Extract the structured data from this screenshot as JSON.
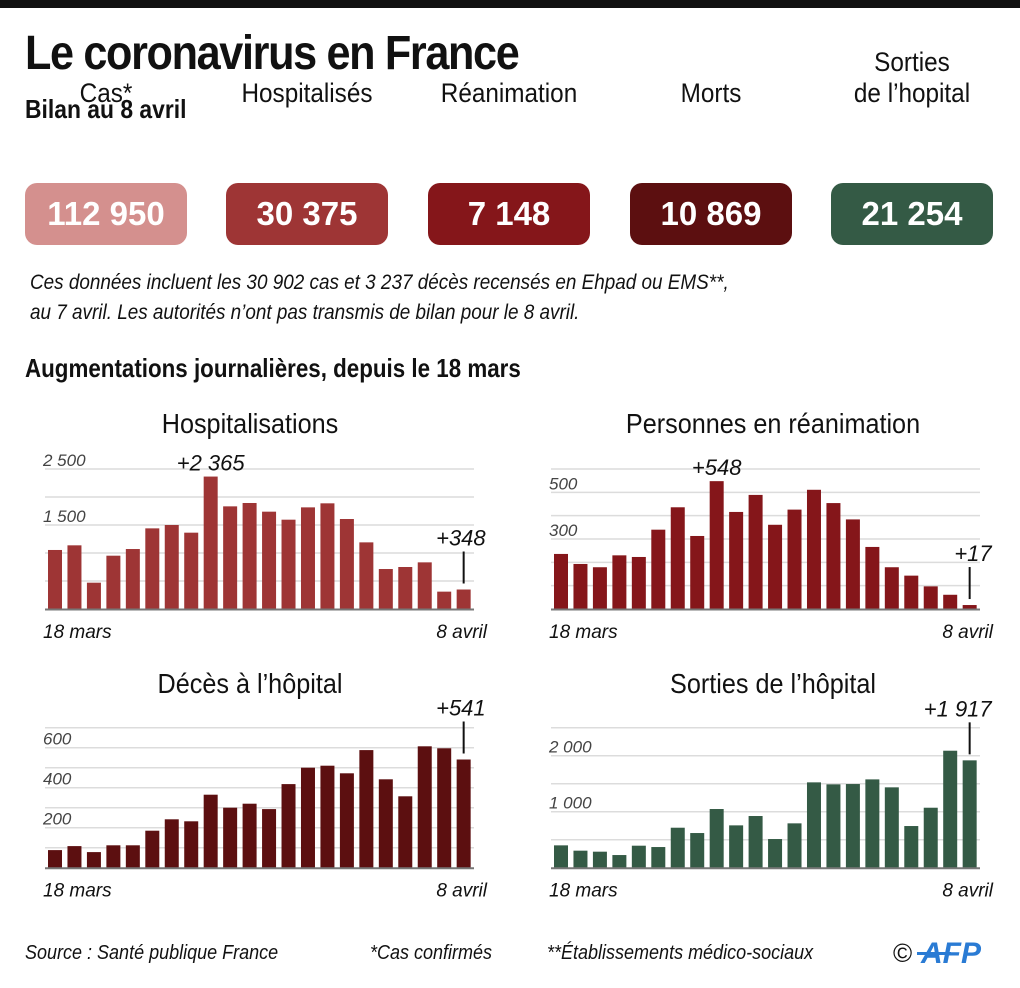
{
  "header": {
    "title": "Le coronavirus en France",
    "subtitle": "Bilan au 8 avril"
  },
  "stats": [
    {
      "label": "Cas*",
      "value": "112 950",
      "color": "#d4908e"
    },
    {
      "label": "Hospitalisés",
      "value": "30 375",
      "color": "#9e3535"
    },
    {
      "label": "Réanimation",
      "value": "7 148",
      "color": "#85161a"
    },
    {
      "label": "Morts",
      "value": "10 869",
      "color": "#5c0f10"
    },
    {
      "label_line1": "Sorties",
      "label": "de l’hopital",
      "value": "21 254",
      "color": "#345a45"
    }
  ],
  "note": {
    "line1": "Ces données incluent les 30 902 cas et 3 237 décès recensés en Ehpad ou EMS**,",
    "line2": "au 7 avril. Les autorités n’ont pas transmis de bilan pour le 8 avril."
  },
  "section_title": "Augmentations journalières, depuis le 18 mars",
  "chart_data": [
    {
      "type": "bar",
      "id": "hospitalisations",
      "title": "Hospitalisations",
      "color": "#9e3535",
      "x_start_label": "18 mars",
      "x_end_label": "8 avril",
      "ytick_labels": [
        {
          "value": 1500,
          "label": "1 500"
        },
        {
          "value": 2500,
          "label": "2 500"
        }
      ],
      "gridlines": [
        500,
        1000,
        1500,
        2000,
        2500
      ],
      "ylim": [
        0,
        2500
      ],
      "values": [
        1054,
        1137,
        470,
        952,
        1071,
        1440,
        1500,
        1363,
        2365,
        1833,
        1893,
        1738,
        1595,
        1815,
        1887,
        1607,
        1190,
        714,
        750,
        833,
        310,
        348
      ],
      "annotations": [
        {
          "index": 8,
          "label": "+2 365",
          "style": "above"
        },
        {
          "index": 21,
          "label": "+348",
          "style": "leader"
        }
      ]
    },
    {
      "type": "bar",
      "id": "reanimation",
      "title": "Personnes en réanimation",
      "color": "#85161a",
      "x_start_label": "18 mars",
      "x_end_label": "8 avril",
      "ytick_labels": [
        {
          "value": 300,
          "label": "300"
        },
        {
          "value": 500,
          "label": "500"
        }
      ],
      "gridlines": [
        100,
        200,
        300,
        400,
        500,
        600
      ],
      "ylim": [
        0,
        600
      ],
      "values": [
        236,
        193,
        179,
        230,
        223,
        340,
        436,
        313,
        548,
        416,
        489,
        361,
        426,
        511,
        454,
        384,
        266,
        179,
        143,
        97,
        61,
        17
      ],
      "annotations": [
        {
          "index": 8,
          "label": "+548",
          "style": "above"
        },
        {
          "index": 21,
          "label": "+17",
          "style": "leader"
        }
      ]
    },
    {
      "type": "bar",
      "id": "deces",
      "title": "Décès à l’hôpital",
      "color": "#5c0f10",
      "x_start_label": "18 mars",
      "x_end_label": "8 avril",
      "ytick_labels": [
        {
          "value": 200,
          "label": "200"
        },
        {
          "value": 400,
          "label": "400"
        },
        {
          "value": 600,
          "label": "600"
        }
      ],
      "gridlines": [
        100,
        200,
        300,
        400,
        500,
        600,
        700
      ],
      "ylim": [
        0,
        700
      ],
      "values": [
        88,
        108,
        78,
        112,
        112,
        185,
        242,
        232,
        365,
        300,
        320,
        293,
        418,
        500,
        510,
        472,
        588,
        442,
        357,
        607,
        597,
        541
      ],
      "annotations": [
        {
          "index": 21,
          "label": "+541",
          "style": "leader"
        }
      ]
    },
    {
      "type": "bar",
      "id": "sorties",
      "title": "Sorties de l’hôpital",
      "color": "#345a45",
      "x_start_label": "18 mars",
      "x_end_label": "8 avril",
      "ytick_labels": [
        {
          "value": 1000,
          "label": "1 000"
        },
        {
          "value": 2000,
          "label": "2 000"
        }
      ],
      "gridlines": [
        500,
        1000,
        1500,
        2000,
        2500
      ],
      "ylim": [
        0,
        2500
      ],
      "values": [
        399,
        304,
        286,
        226,
        393,
        369,
        714,
        619,
        1048,
        756,
        923,
        512,
        792,
        1524,
        1488,
        1494,
        1577,
        1435,
        744,
        1071,
        2089,
        1917
      ],
      "annotations": [
        {
          "index": 21,
          "label": "+1 917",
          "style": "leader"
        }
      ]
    }
  ],
  "footer": {
    "source": "Source : Santé publique France",
    "note1": "*Cas confirmés",
    "note2": "**Établissements médico-sociaux",
    "copyright": "©",
    "logo": "AFP",
    "logo_color": "#2a7bd4"
  }
}
